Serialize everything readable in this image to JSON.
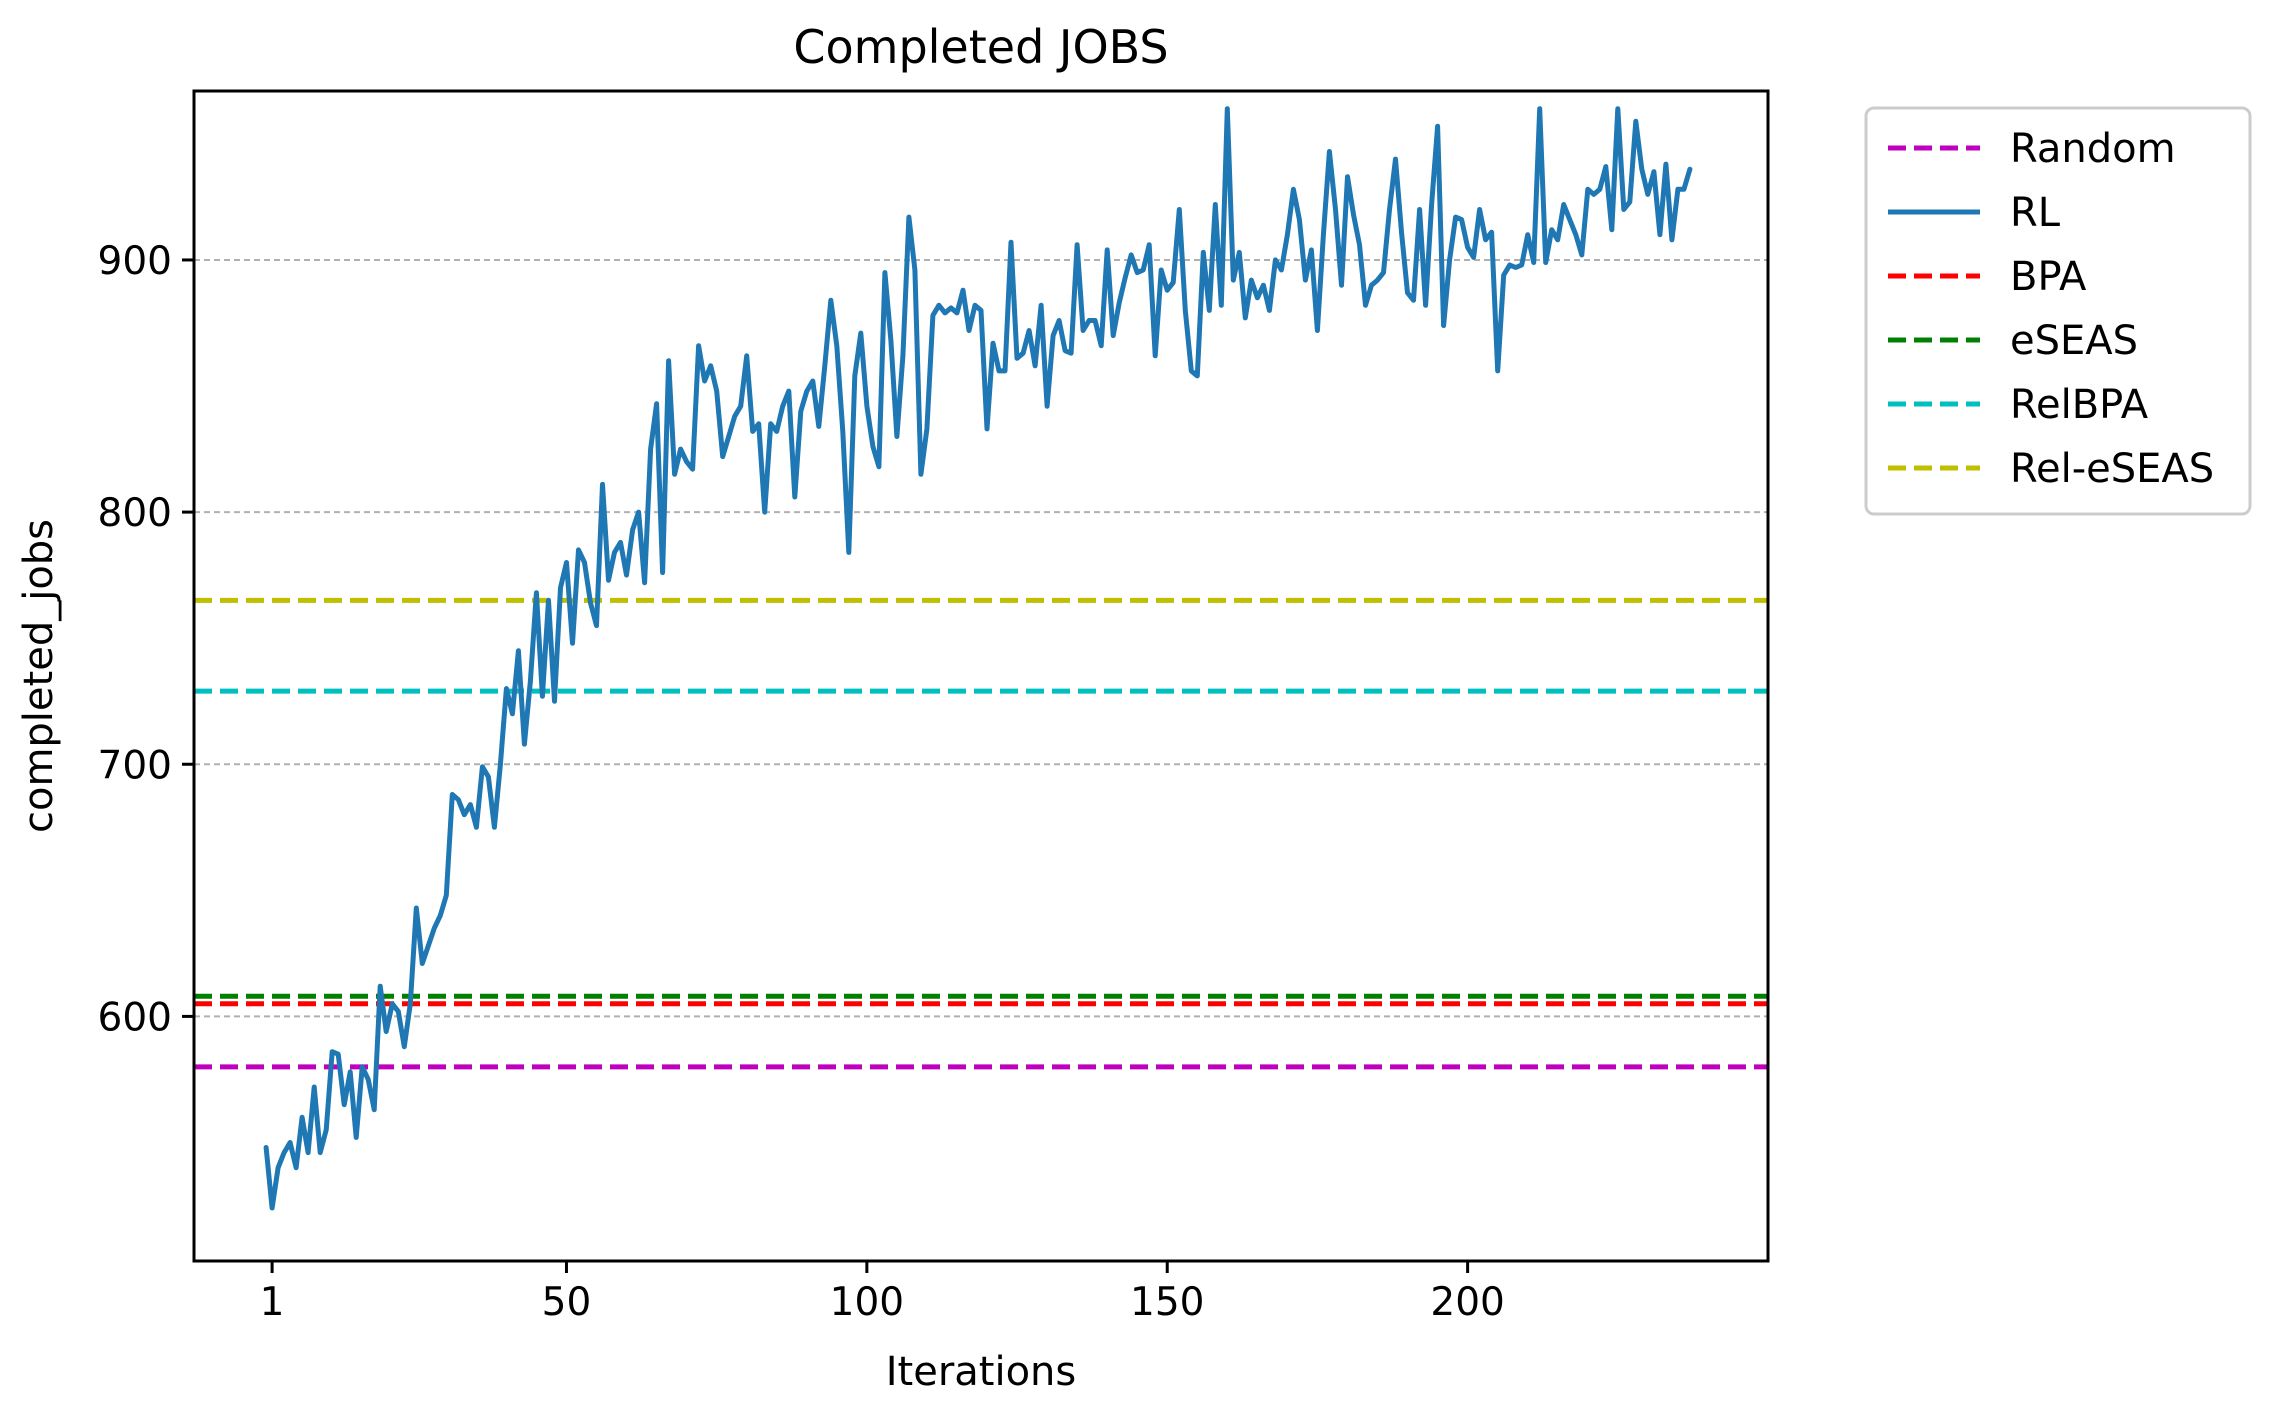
{
  "chart_data": {
    "type": "line",
    "title": "Completed JOBS",
    "xlabel": "Iterations",
    "ylabel": "completed_jobs",
    "xlim": [
      -12,
      250
    ],
    "ylim": [
      503,
      967
    ],
    "x_ticks": [
      1,
      50,
      100,
      150,
      200
    ],
    "x_tick_labels": [
      "1",
      "50",
      "100",
      "150",
      "200"
    ],
    "y_ticks": [
      600,
      700,
      800,
      900
    ],
    "y_tick_labels": [
      "600",
      "700",
      "800",
      "900"
    ],
    "grid": "horizontal dashed gray",
    "legend_position": "outside upper right",
    "baselines": [
      {
        "name": "Random",
        "value": 580,
        "color": "#bf00bf",
        "style": "dashed"
      },
      {
        "name": "BPA",
        "value": 605,
        "color": "#ff0000",
        "style": "dashed"
      },
      {
        "name": "eSEAS",
        "value": 608,
        "color": "#008000",
        "style": "dashed"
      },
      {
        "name": "RelBPA",
        "value": 729,
        "color": "#00bfbf",
        "style": "dashed"
      },
      {
        "name": "Rel-eSEAS",
        "value": 765,
        "color": "#bfbf00",
        "style": "dashed"
      }
    ],
    "series": [
      {
        "name": "RL",
        "color": "#1f77b4",
        "style": "solid",
        "x": [
          0,
          1,
          2,
          3,
          4,
          5,
          6,
          7,
          8,
          9,
          10,
          11,
          12,
          13,
          14,
          15,
          16,
          17,
          18,
          19,
          20,
          21,
          22,
          23,
          24,
          25,
          26,
          27,
          28,
          29,
          30,
          31,
          32,
          33,
          34,
          35,
          36,
          37,
          38,
          39,
          40,
          41,
          42,
          43,
          44,
          45,
          46,
          47,
          48,
          49,
          50,
          51,
          52,
          53,
          54,
          55,
          56,
          57,
          58,
          59,
          60,
          61,
          62,
          63,
          64,
          65,
          66,
          67,
          68,
          69,
          70,
          71,
          72,
          73,
          74,
          75,
          76,
          77,
          78,
          79,
          80,
          81,
          82,
          83,
          84,
          85,
          86,
          87,
          88,
          89,
          90,
          91,
          92,
          93,
          94,
          95,
          96,
          97,
          98,
          99,
          100,
          101,
          102,
          103,
          104,
          105,
          106,
          107,
          108,
          109,
          110,
          111,
          112,
          113,
          114,
          115,
          116,
          117,
          118,
          119,
          120,
          121,
          122,
          123,
          124,
          125,
          126,
          127,
          128,
          129,
          130,
          131,
          132,
          133,
          134,
          135,
          136,
          137,
          138,
          139,
          140,
          141,
          142,
          143,
          144,
          145,
          146,
          147,
          148,
          149,
          150,
          151,
          152,
          153,
          154,
          155,
          156,
          157,
          158,
          159,
          160,
          161,
          162,
          163,
          164,
          165,
          166,
          167,
          168,
          169,
          170,
          171,
          172,
          173,
          174,
          175,
          176,
          177,
          178,
          179,
          180,
          181,
          182,
          183,
          184,
          185,
          186,
          187,
          188,
          189,
          190,
          191,
          192,
          193,
          194,
          195,
          196,
          197,
          198,
          199,
          200,
          201,
          202,
          203,
          204,
          205,
          206,
          207,
          208,
          209,
          210,
          211,
          212,
          213,
          214,
          215,
          216,
          217,
          218,
          219,
          220,
          221,
          222,
          223,
          224,
          225,
          226,
          227,
          228,
          229,
          230,
          231,
          232,
          233,
          234,
          235,
          236,
          237
        ],
        "values": [
          548,
          524,
          540,
          546,
          550,
          540,
          560,
          546,
          572,
          546,
          555,
          586,
          585,
          565,
          578,
          552,
          580,
          575,
          563,
          612,
          594,
          605,
          602,
          588,
          605,
          643,
          621,
          628,
          635,
          640,
          648,
          688,
          686,
          680,
          684,
          675,
          699,
          695,
          675,
          700,
          730,
          720,
          745,
          708,
          733,
          768,
          727,
          765,
          725,
          770,
          780,
          748,
          785,
          780,
          764,
          755,
          811,
          773,
          784,
          788,
          775,
          793,
          800,
          772,
          825,
          843,
          776,
          860,
          815,
          825,
          820,
          817,
          866,
          852,
          858,
          848,
          822,
          830,
          838,
          842,
          862,
          832,
          835,
          800,
          835,
          832,
          842,
          848,
          806,
          840,
          848,
          852,
          834,
          858,
          884,
          866,
          832,
          784,
          854,
          871,
          842,
          826,
          818,
          895,
          868,
          830,
          862,
          917,
          896,
          815,
          833,
          878,
          882,
          879,
          881,
          879,
          888,
          872,
          882,
          880,
          833,
          867,
          856,
          856,
          907,
          861,
          863,
          872,
          858,
          882,
          842,
          870,
          876,
          864,
          863,
          906,
          872,
          876,
          876,
          866,
          904,
          870,
          883,
          893,
          902,
          895,
          896,
          906,
          862,
          896,
          888,
          891,
          920,
          880,
          856,
          854,
          903,
          880,
          922,
          882,
          960,
          892,
          903,
          877,
          892,
          885,
          890,
          880,
          900,
          896,
          910,
          928,
          916,
          892,
          904,
          872,
          910,
          943,
          920,
          890,
          933,
          918,
          906,
          882,
          890,
          892,
          895,
          920,
          940,
          911,
          887,
          884,
          920,
          882,
          922,
          953,
          874,
          900,
          917,
          916,
          905,
          901,
          920,
          908,
          911,
          856,
          894,
          898,
          897,
          898,
          910,
          899,
          960,
          899,
          912,
          908,
          922,
          916,
          910,
          902,
          928,
          926,
          928,
          937,
          912,
          960,
          920,
          923,
          955,
          936,
          926,
          935,
          910,
          938,
          908,
          928,
          928,
          936
        ]
      }
    ],
    "legend_order": [
      "Random",
      "RL",
      "BPA",
      "eSEAS",
      "RelBPA",
      "Rel-eSEAS"
    ]
  }
}
